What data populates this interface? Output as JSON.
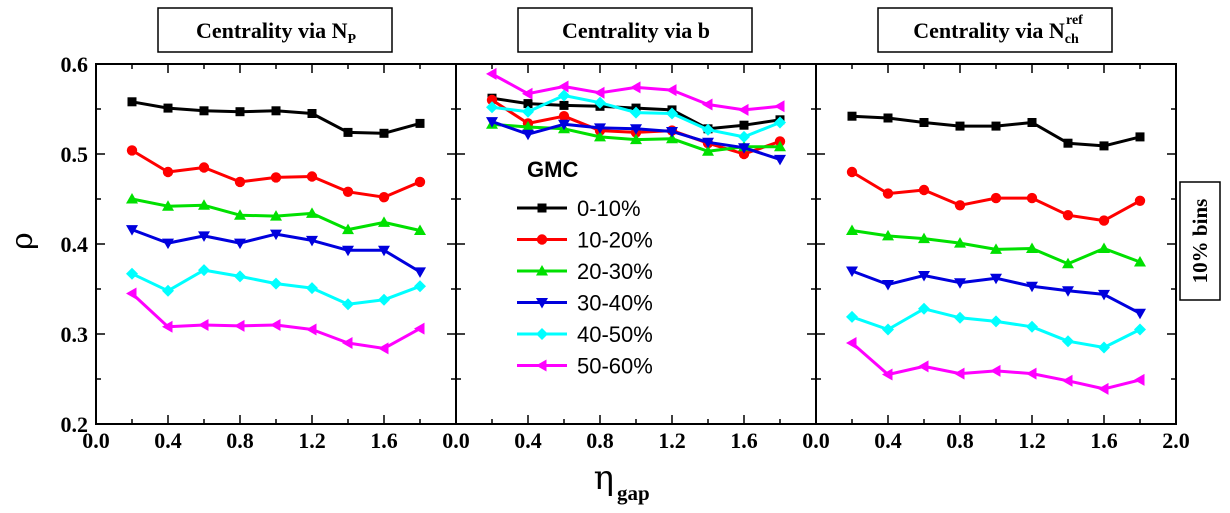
{
  "chart_data": {
    "type": "line",
    "y_label": "ρ",
    "x_label_main": "η",
    "x_label_sub": "gap",
    "side_label": "10% bins",
    "legend_title": "GMC",
    "ylim": [
      0.2,
      0.6
    ],
    "yticks": [
      "0.2",
      "0.3",
      "0.4",
      "0.5",
      "0.6"
    ],
    "x": [
      0.2,
      0.4,
      0.6,
      0.8,
      1.0,
      1.2,
      1.4,
      1.6,
      1.8
    ],
    "colors": [
      "#000000",
      "#ff0000",
      "#00e000",
      "#0000dd",
      "#00ffff",
      "#ff00ff"
    ],
    "markers": [
      "square",
      "circle",
      "triangle-up",
      "triangle-down",
      "diamond",
      "triangle-left"
    ],
    "panels": [
      {
        "title_main": "Centrality via N",
        "title_sub": "P",
        "title_sup": "",
        "xlim": [
          0.0,
          2.0
        ],
        "xticks": [
          "0.0",
          "0.4",
          "0.8",
          "1.2",
          "1.6"
        ],
        "series": [
          {
            "name": "0-10%",
            "values": [
              0.558,
              0.551,
              0.548,
              0.547,
              0.548,
              0.545,
              0.524,
              0.523,
              0.534
            ]
          },
          {
            "name": "10-20%",
            "values": [
              0.504,
              0.48,
              0.485,
              0.469,
              0.474,
              0.475,
              0.458,
              0.452,
              0.469
            ]
          },
          {
            "name": "20-30%",
            "values": [
              0.45,
              0.442,
              0.443,
              0.432,
              0.431,
              0.434,
              0.416,
              0.424,
              0.415
            ]
          },
          {
            "name": "30-40%",
            "values": [
              0.416,
              0.401,
              0.409,
              0.401,
              0.411,
              0.404,
              0.393,
              0.393,
              0.369
            ]
          },
          {
            "name": "40-50%",
            "values": [
              0.367,
              0.348,
              0.371,
              0.364,
              0.356,
              0.351,
              0.333,
              0.338,
              0.353
            ]
          },
          {
            "name": "50-60%",
            "values": [
              0.345,
              0.308,
              0.31,
              0.309,
              0.31,
              0.305,
              0.29,
              0.284,
              0.306
            ]
          }
        ]
      },
      {
        "title_main": "Centrality via b",
        "title_sub": "",
        "title_sup": "",
        "xlim": [
          0.0,
          2.0
        ],
        "xticks": [
          "0.0",
          "0.4",
          "0.8",
          "1.2",
          "1.6"
        ],
        "series": [
          {
            "name": "0-10%",
            "values": [
              0.562,
              0.556,
              0.554,
              0.553,
              0.551,
              0.549,
              0.528,
              0.532,
              0.538
            ]
          },
          {
            "name": "10-20%",
            "values": [
              0.56,
              0.534,
              0.542,
              0.526,
              0.524,
              0.526,
              0.512,
              0.5,
              0.514
            ]
          },
          {
            "name": "20-30%",
            "values": [
              0.533,
              0.53,
              0.528,
              0.519,
              0.516,
              0.517,
              0.503,
              0.508,
              0.508
            ]
          },
          {
            "name": "30-40%",
            "values": [
              0.536,
              0.522,
              0.533,
              0.529,
              0.528,
              0.525,
              0.513,
              0.507,
              0.494
            ]
          },
          {
            "name": "40-50%",
            "values": [
              0.552,
              0.547,
              0.565,
              0.557,
              0.546,
              0.545,
              0.527,
              0.519,
              0.535
            ]
          },
          {
            "name": "50-60%",
            "values": [
              0.589,
              0.567,
              0.575,
              0.568,
              0.574,
              0.571,
              0.555,
              0.549,
              0.553
            ]
          }
        ]
      },
      {
        "title_main": "Centrality via N",
        "title_sub": "ch",
        "title_sup": "ref",
        "xlim": [
          0.0,
          2.0
        ],
        "xticks": [
          "0.0",
          "0.4",
          "0.8",
          "1.2",
          "1.6",
          "2.0"
        ],
        "series": [
          {
            "name": "0-10%",
            "values": [
              0.542,
              0.54,
              0.535,
              0.531,
              0.531,
              0.535,
              0.512,
              0.509,
              0.519
            ]
          },
          {
            "name": "10-20%",
            "values": [
              0.48,
              0.456,
              0.46,
              0.443,
              0.451,
              0.451,
              0.432,
              0.426,
              0.448
            ]
          },
          {
            "name": "20-30%",
            "values": [
              0.415,
              0.409,
              0.406,
              0.401,
              0.394,
              0.395,
              0.378,
              0.395,
              0.38
            ]
          },
          {
            "name": "30-40%",
            "values": [
              0.37,
              0.355,
              0.365,
              0.357,
              0.362,
              0.353,
              0.348,
              0.344,
              0.323
            ]
          },
          {
            "name": "40-50%",
            "values": [
              0.319,
              0.305,
              0.328,
              0.318,
              0.314,
              0.308,
              0.292,
              0.285,
              0.305
            ]
          },
          {
            "name": "50-60%",
            "values": [
              0.29,
              0.255,
              0.264,
              0.256,
              0.259,
              0.256,
              0.248,
              0.239,
              0.249
            ]
          }
        ]
      }
    ]
  }
}
